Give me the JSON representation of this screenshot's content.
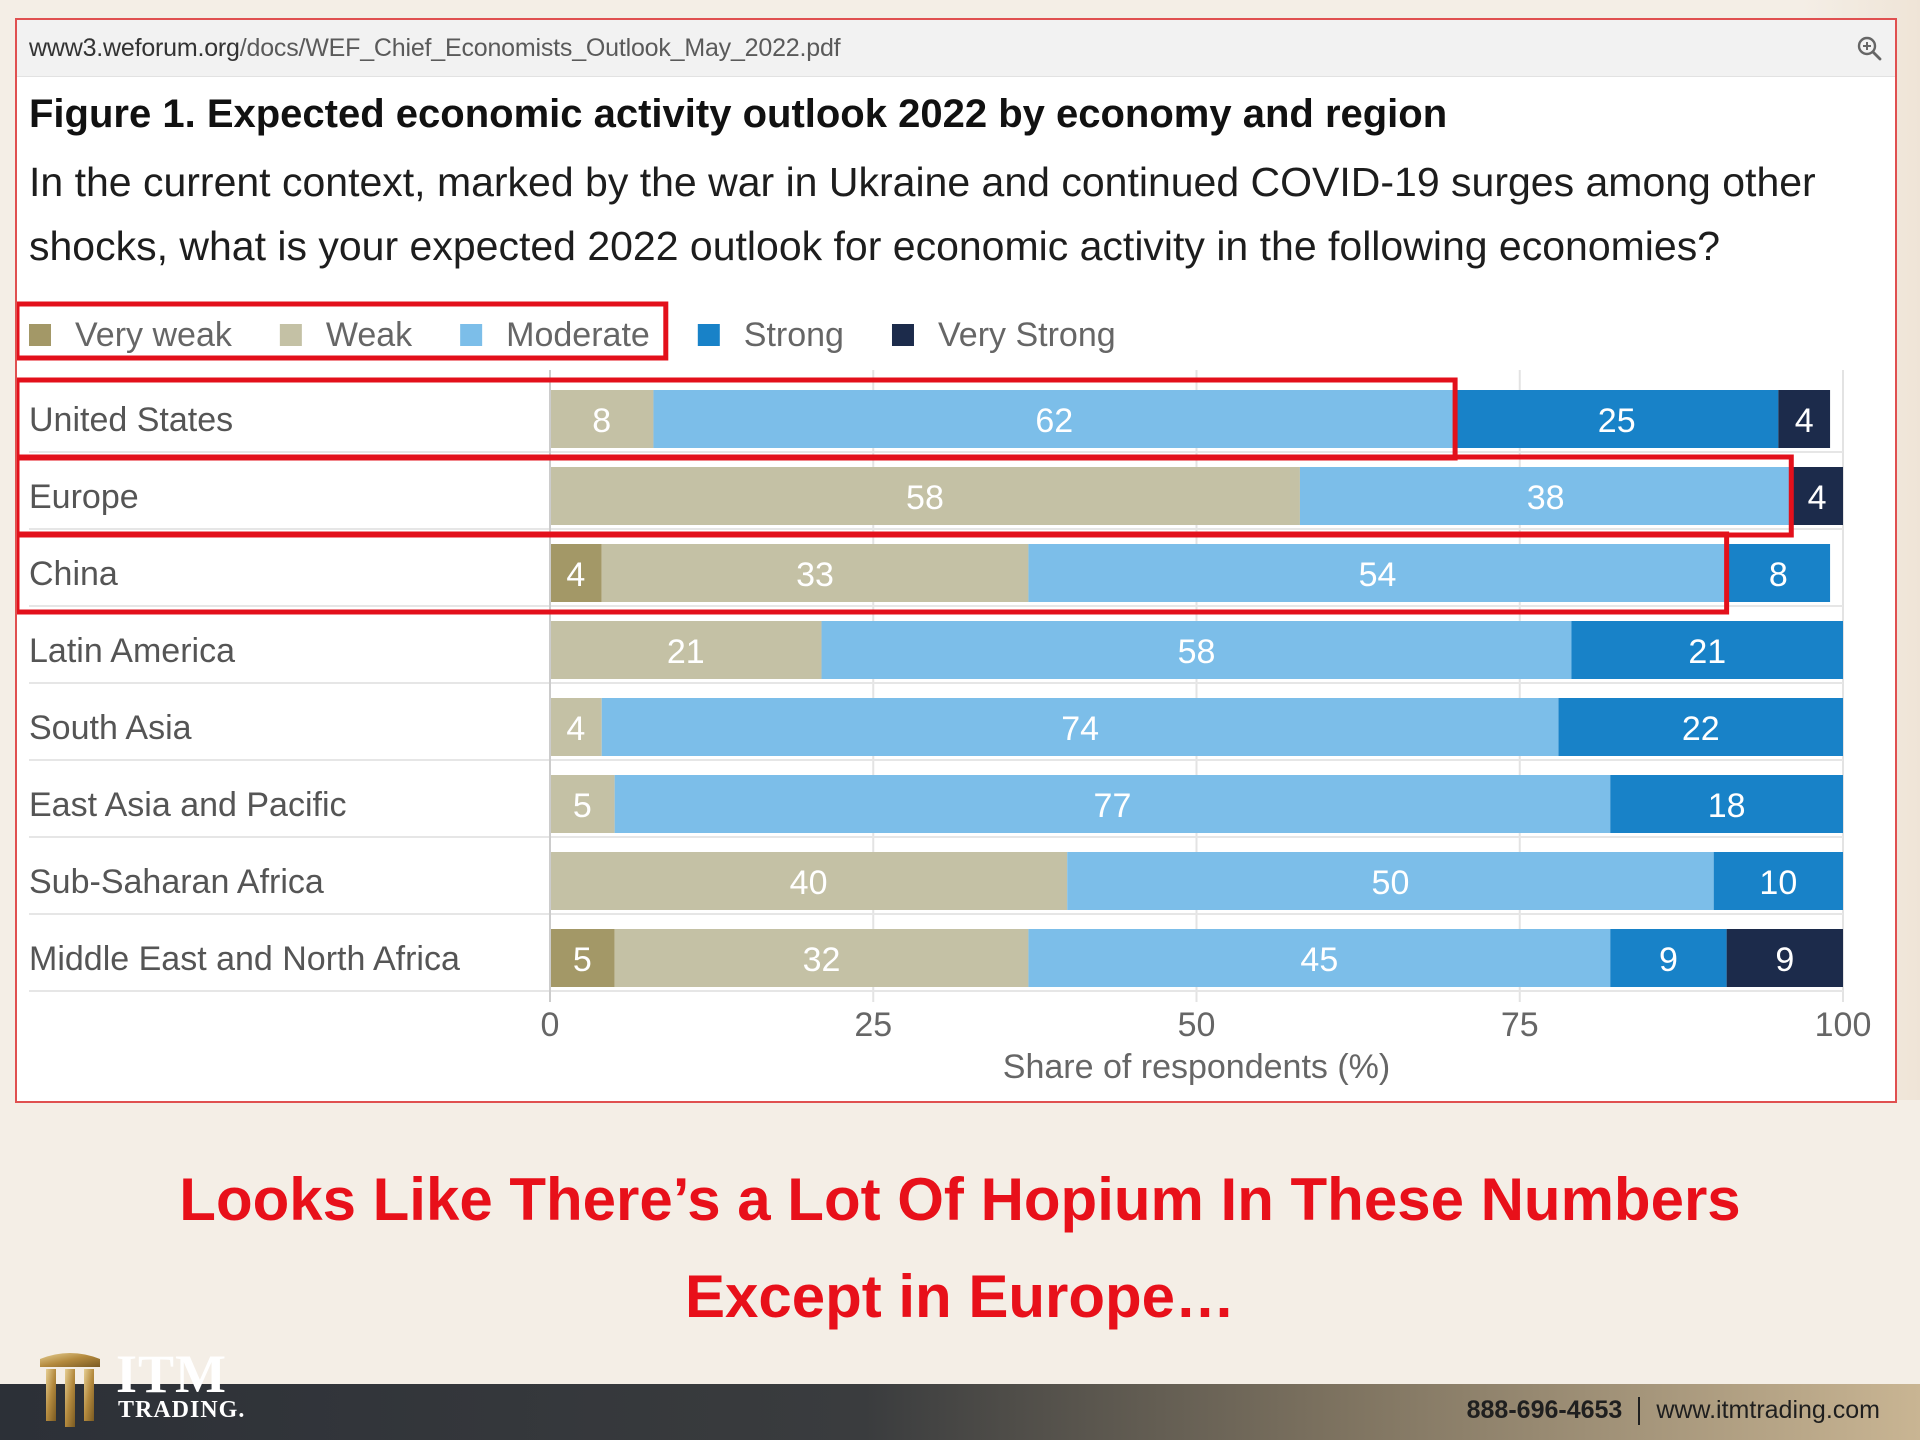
{
  "browser": {
    "url_host": "www3.weforum.org",
    "url_path": "/docs/WEF_Chief_Economists_Outlook_May_2022.pdf",
    "zoom_icon": "zoom-in-icon"
  },
  "figure": {
    "title": "Figure 1. Expected economic activity outlook 2022 by economy and region",
    "subtitle": "In the current context, marked by the war in Ukraine and continued COVID-19 surges among other shocks, what is your expected 2022 outlook for economic activity in the following economies?"
  },
  "chart_data": {
    "type": "bar",
    "orientation": "horizontal-stacked",
    "categories": [
      "United States",
      "Europe",
      "China",
      "Latin America",
      "South Asia",
      "East Asia and Pacific",
      "Sub-Saharan Africa",
      "Middle East and North Africa"
    ],
    "series": [
      {
        "name": "Very weak",
        "color": "#a39867",
        "values": [
          0,
          0,
          4,
          0,
          0,
          0,
          0,
          5
        ]
      },
      {
        "name": "Weak",
        "color": "#c4c1a5",
        "values": [
          8,
          58,
          33,
          21,
          4,
          5,
          40,
          32
        ]
      },
      {
        "name": "Moderate",
        "color": "#7cbee9",
        "values": [
          62,
          38,
          54,
          58,
          74,
          77,
          50,
          45
        ]
      },
      {
        "name": "Strong",
        "color": "#1882c8",
        "values": [
          25,
          0,
          8,
          21,
          22,
          18,
          10,
          9
        ]
      },
      {
        "name": "Very Strong",
        "color": "#1c2b4b",
        "values": [
          4,
          4,
          0,
          0,
          0,
          0,
          0,
          9
        ]
      }
    ],
    "xlabel": "Share of respondents (%)",
    "xlim": [
      0,
      100
    ],
    "xticks": [
      0,
      25,
      50,
      75,
      100
    ],
    "grid": true,
    "legend_position": "top-left",
    "highlight_color": "#e3101b",
    "highlights": [
      "legend-group: Very weak, Weak, Moderate",
      "United States: Weak + Moderate",
      "Europe: Weak + Moderate",
      "China: Very weak + Weak + Moderate"
    ]
  },
  "headline": {
    "line1": "Looks Like There’s a Lot Of Hopium In These Numbers",
    "line2": "Except in Europe…"
  },
  "footer": {
    "phone": "888-696-4653",
    "website": "www.itmtrading.com",
    "logo_word": "ITM",
    "logo_sub": "TRADING."
  }
}
